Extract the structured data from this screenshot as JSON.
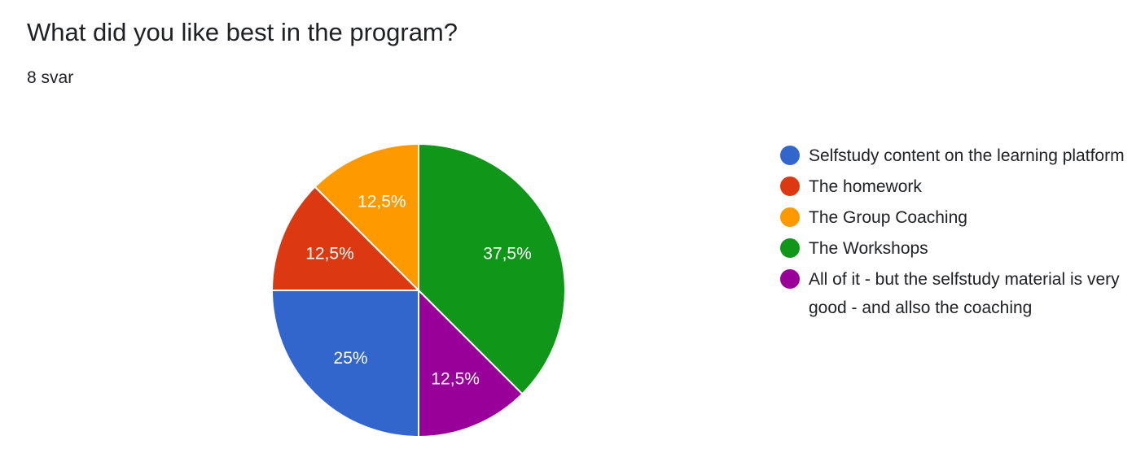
{
  "question": {
    "title": "What did you like best in the program?",
    "responses": "8 svar"
  },
  "chart_data": {
    "type": "pie",
    "start": "vertical axis, clockwise",
    "slices": [
      {
        "label": "Selfstudy content on the learning platform",
        "value": 25,
        "display": "25%",
        "color": "#3366cc"
      },
      {
        "label": "The homework",
        "value": 12.5,
        "display": "12,5%",
        "color": "#dc3912"
      },
      {
        "label": "The Group Coaching",
        "value": 12.5,
        "display": "12,5%",
        "color": "#ff9900"
      },
      {
        "label": "The Workshops",
        "value": 37.5,
        "display": "37,5%",
        "color": "#109618"
      },
      {
        "label": "All of it - but the selfstudy material is very good - and allso the coaching",
        "value": 12.5,
        "display": "12,5%",
        "color": "#990099"
      }
    ],
    "legend_position": "right"
  }
}
